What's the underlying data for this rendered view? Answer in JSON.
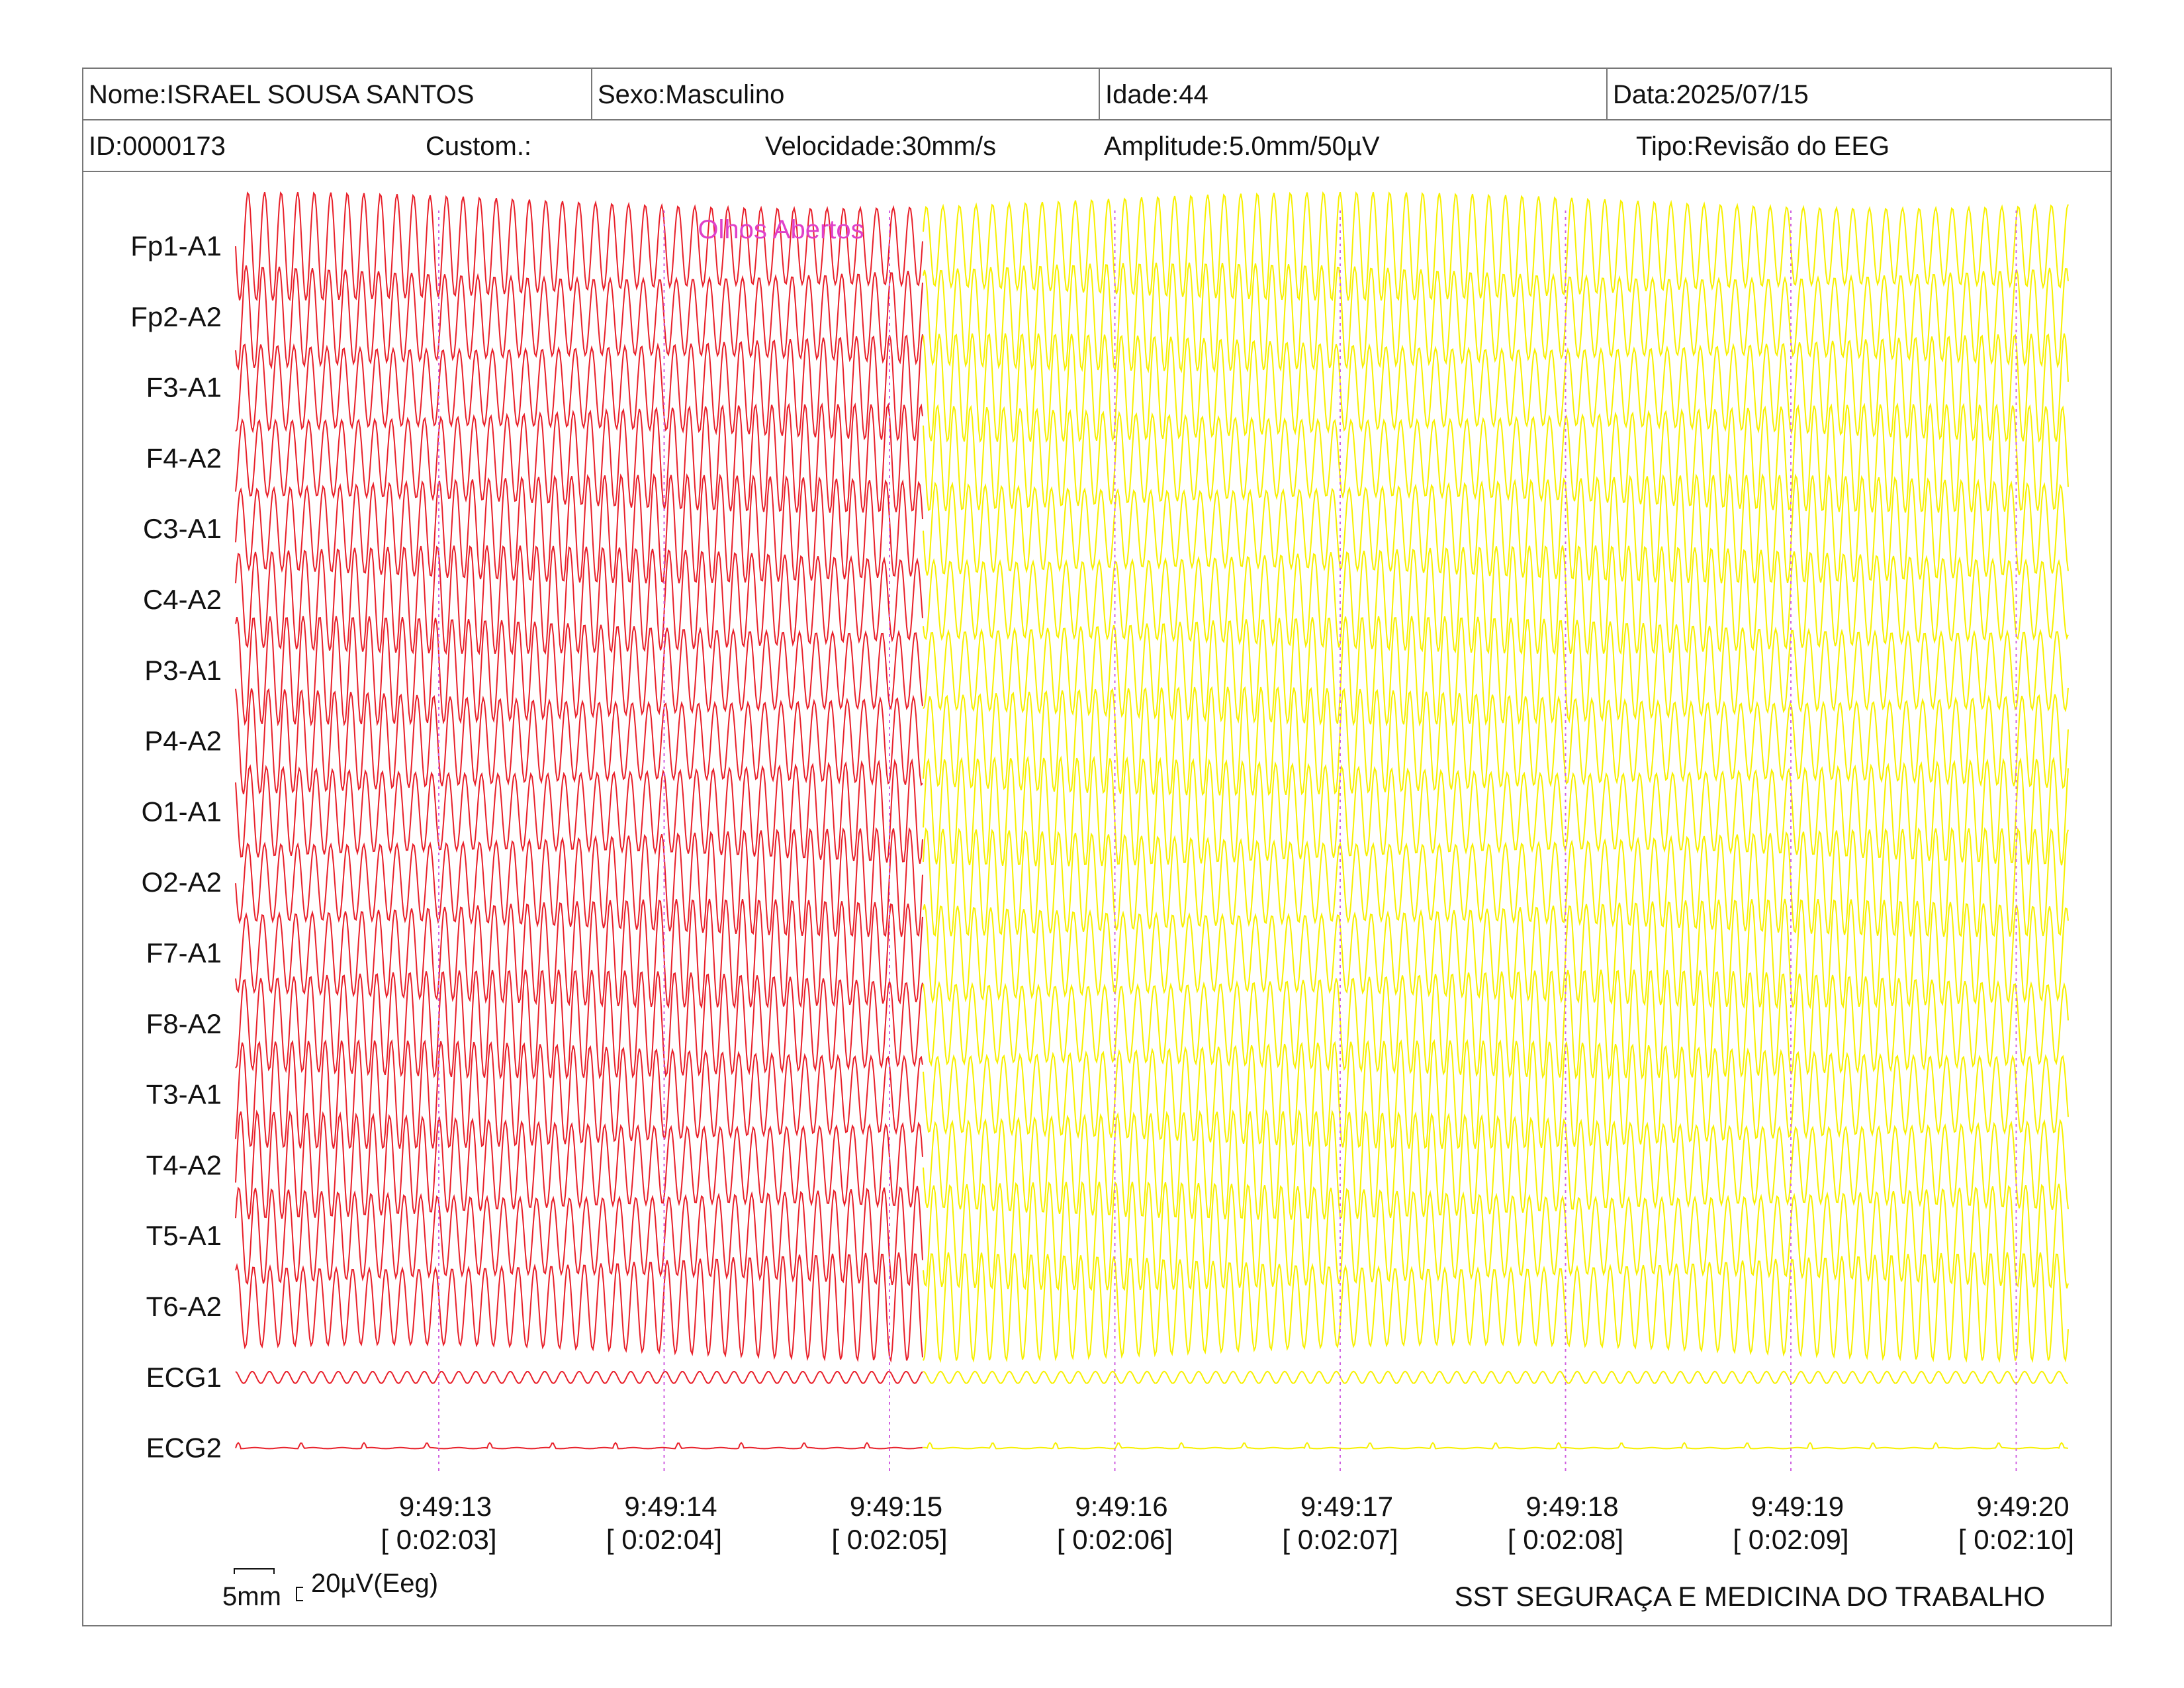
{
  "header": {
    "nome": "Nome:ISRAEL SOUSA SANTOS",
    "sexo": "Sexo:Masculino",
    "idade": "Idade:44",
    "data": "Data:2025/07/15",
    "id": "ID:0000173",
    "custom": "Custom.:",
    "velocidade": "Velocidade:30mm/s",
    "amplitude": "Amplitude:5.0mm/50µV",
    "tipo": "Tipo:Revisão do EEG"
  },
  "annotation": "Olhos Abertos",
  "scale_legend": {
    "time": "5mm",
    "amp": "20µV(Eeg)"
  },
  "footer": {
    "company": "SST SEGURAÇA E MEDICINA DO TRABALHO"
  },
  "colors": {
    "trace_before": "#e8202a",
    "trace_after": "#f7f000",
    "annotation": "#e040c8",
    "time_marker": "#d060e0",
    "border": "#777777"
  },
  "chart_data": {
    "type": "line",
    "channels": [
      "Fp1-A1",
      "Fp2-A2",
      "F3-A1",
      "F4-A2",
      "C3-A1",
      "C4-A2",
      "P3-A1",
      "P4-A2",
      "O1-A1",
      "O2-A2",
      "F7-A1",
      "F8-A2",
      "T3-A1",
      "T4-A2",
      "T5-A1",
      "T6-A2",
      "ECG1",
      "ECG2"
    ],
    "time_labels": [
      "9:49:13",
      "9:49:14",
      "9:49:15",
      "9:49:16",
      "9:49:17",
      "9:49:18",
      "9:49:19",
      "9:49:20"
    ],
    "elapsed_labels": [
      "[ 0:02:03]",
      "[ 0:02:04]",
      "[ 0:02:05]",
      "[ 0:02:06]",
      "[ 0:02:07]",
      "[ 0:02:08]",
      "[ 0:02:09]",
      "[ 0:02:10]"
    ],
    "annotation_event": {
      "label": "Olhos Abertos",
      "time": "9:49:15"
    }
  }
}
